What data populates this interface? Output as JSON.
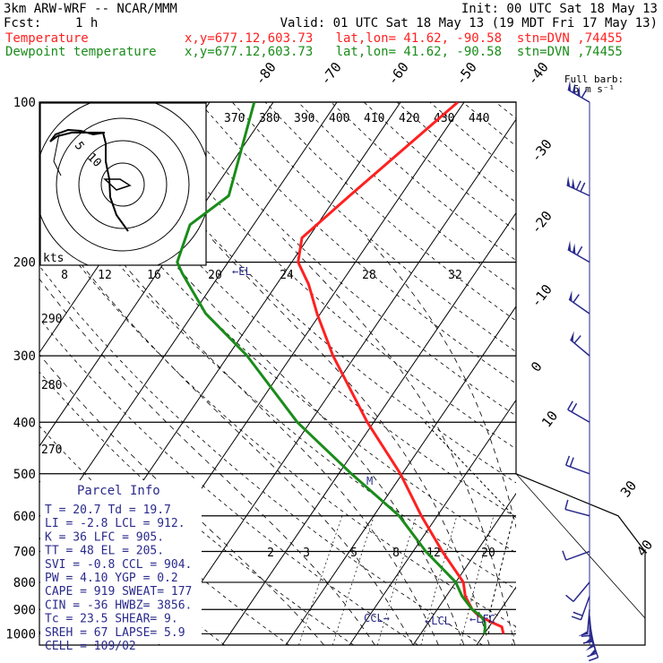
{
  "header": {
    "model": "3km ARW-WRF -- NCAR/MMM",
    "init": "Init: 00 UTC Sat 18 May 13",
    "fcst_label": "Fcst:",
    "fcst_value": "1 h",
    "valid": "Valid: 01 UTC Sat 18 May 13 (19 MDT Fri 17 May 13)",
    "temp_label": "Temperature",
    "temp_info": "x,y=677.12,603.73   lat,lon= 41.62, -90.58  stn=DVN ,74455",
    "dew_label": "Dewpoint temperature",
    "dew_info": "x,y=677.12,603.73   lat,lon= 41.62, -90.58  stn=DVN ,74455"
  },
  "colors": {
    "temperature": "#ff2020",
    "dewpoint": "#1a8c1a",
    "wind": "#2a2a8c",
    "axes": "#000000"
  },
  "full_barb_label": "Full barb:",
  "full_barb_value": "5 m s⁻¹",
  "hodograph": {
    "units": "kts",
    "ring_labels": [
      "5",
      "10"
    ]
  },
  "parcel_info": {
    "title": "Parcel Info",
    "rows": [
      "T  =   20.7  Td =  19.7",
      "LI =   -2.8  LCL =  912.",
      "K  =     36  LFC =  905.",
      "TT =     48  EL  =  205.",
      "SVI =  -0.8  CCL =  904.",
      "PW =   4.10  YGP =   0.2",
      "CAPE =  919  SWEAT=  177",
      "CIN =   -36  HWBZ= 3856.",
      "Tc =   23.5  SHEAR=   9.",
      "SREH =   67  LAPSE=   5.9",
      "CELL = 109/02"
    ]
  },
  "level_labels": {
    "el": "←EL",
    "ccl": "CCL→",
    "lcl": "←LCL",
    "lfc": "←LFC",
    "m": "M"
  },
  "chart_data": {
    "type": "line",
    "title": "",
    "y_axis": {
      "label": "",
      "scale": "log",
      "range": [
        1000,
        100
      ],
      "ticks": [
        100,
        200,
        300,
        400,
        500,
        600,
        700,
        800,
        900,
        1000
      ]
    },
    "isotherm_labels": [
      "-80",
      "-70",
      "-60",
      "-50",
      "-40",
      "-30",
      "-20",
      "-10",
      "0",
      "10",
      "30",
      "40"
    ],
    "theta_e_labels": [
      "370",
      "380",
      "390",
      "400",
      "410",
      "420",
      "430",
      "440"
    ],
    "theta_e_labels_lower": [
      "290",
      "280",
      "270"
    ],
    "mixing_ratio_labels_upper": [
      "8",
      "12",
      "16",
      "20",
      "24",
      "28",
      "32"
    ],
    "mixing_ratio_labels_lower": [
      "2",
      "3",
      "5",
      "8",
      "12",
      "20"
    ],
    "series": [
      {
        "name": "Temperature",
        "points": [
          [
            1000,
            23
          ],
          [
            970,
            22
          ],
          [
            950,
            19.8
          ],
          [
            925,
            17.2
          ],
          [
            900,
            15.5
          ],
          [
            850,
            13
          ],
          [
            800,
            11.2
          ],
          [
            700,
            4.6
          ],
          [
            600,
            -2.5
          ],
          [
            500,
            -10.3
          ],
          [
            400,
            -21
          ],
          [
            300,
            -33.5
          ],
          [
            250,
            -40.5
          ],
          [
            220,
            -45
          ],
          [
            200,
            -49
          ],
          [
            180,
            -51
          ],
          [
            150,
            -48
          ],
          [
            100,
            -41
          ]
        ]
      },
      {
        "name": "Dewpoint temperature",
        "points": [
          [
            1000,
            20
          ],
          [
            975,
            19.5
          ],
          [
            950,
            18.8
          ],
          [
            925,
            17.5
          ],
          [
            900,
            15.5
          ],
          [
            850,
            12.5
          ],
          [
            800,
            10
          ],
          [
            700,
            2
          ],
          [
            600,
            -6
          ],
          [
            500,
            -18
          ],
          [
            400,
            -32
          ],
          [
            300,
            -47
          ],
          [
            250,
            -58
          ],
          [
            210,
            -66
          ],
          [
            200,
            -68
          ],
          [
            170,
            -70
          ],
          [
            150,
            -67
          ],
          [
            100,
            -73
          ]
        ]
      }
    ],
    "winds": [
      {
        "p": 1000,
        "dir": 160,
        "spd": 7
      },
      {
        "p": 975,
        "dir": 165,
        "spd": 10
      },
      {
        "p": 950,
        "dir": 170,
        "spd": 12
      },
      {
        "p": 925,
        "dir": 175,
        "spd": 12
      },
      {
        "p": 900,
        "dir": 185,
        "spd": 10
      },
      {
        "p": 850,
        "dir": 200,
        "spd": 8
      },
      {
        "p": 800,
        "dir": 220,
        "spd": 5
      },
      {
        "p": 700,
        "dir": 250,
        "spd": 4
      },
      {
        "p": 600,
        "dir": 285,
        "spd": 5
      },
      {
        "p": 500,
        "dir": 290,
        "spd": 7
      },
      {
        "p": 400,
        "dir": 300,
        "spd": 9
      },
      {
        "p": 300,
        "dir": 310,
        "spd": 12
      },
      {
        "p": 250,
        "dir": 305,
        "spd": 15
      },
      {
        "p": 200,
        "dir": 300,
        "spd": 22
      },
      {
        "p": 150,
        "dir": 295,
        "spd": 28
      },
      {
        "p": 100,
        "dir": 300,
        "spd": 35
      }
    ]
  }
}
